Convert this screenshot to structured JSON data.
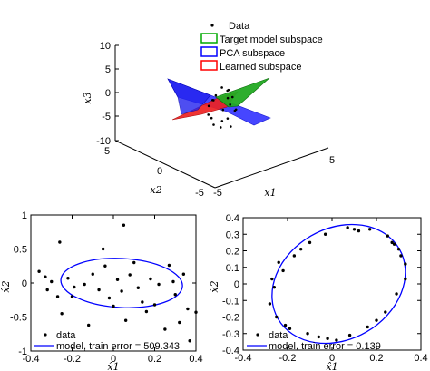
{
  "chart_data": [
    {
      "type": "scatter",
      "subtype": "3d-scatter-with-planes",
      "xlabel": "x1",
      "ylabel": "x2",
      "zlabel": "x3",
      "xlim": [
        -5,
        5
      ],
      "ylim": [
        -5,
        5
      ],
      "zlim": [
        -10,
        10
      ],
      "x_ticks": [
        "-5",
        "5"
      ],
      "y_ticks": [
        "5",
        "0",
        "-5"
      ],
      "z_ticks": [
        "10",
        "5",
        "0",
        "-5",
        "-10"
      ],
      "legend_position": "top-right",
      "legend": [
        {
          "label": "Data",
          "color": "#000000",
          "marker": "dot"
        },
        {
          "label": "Target model subspace",
          "color": "#00aa00",
          "marker": "patch"
        },
        {
          "label": "PCA subspace",
          "color": "#0000ff",
          "marker": "patch"
        },
        {
          "label": "Learned subspace",
          "color": "#ff0000",
          "marker": "patch"
        }
      ],
      "points": [
        [
          0.5,
          0.3,
          3.5
        ],
        [
          -0.4,
          -0.2,
          2.6
        ],
        [
          0.2,
          0.8,
          -1.8
        ],
        [
          -0.9,
          0.5,
          -2.5
        ],
        [
          0.8,
          -0.6,
          2.2
        ],
        [
          -0.3,
          -0.9,
          0.8
        ],
        [
          1.1,
          0.2,
          -1.5
        ],
        [
          0.3,
          1.2,
          -3.2
        ],
        [
          -0.6,
          -0.4,
          1.6
        ],
        [
          0.9,
          0.9,
          -0.4
        ],
        [
          -1.0,
          0.3,
          -1.2
        ],
        [
          0.4,
          -0.8,
          3.0
        ],
        [
          -0.2,
          0.6,
          -2.2
        ],
        [
          0.7,
          -0.3,
          1.0
        ],
        [
          -0.8,
          -0.7,
          0.2
        ],
        [
          0.1,
          0.1,
          -0.6
        ],
        [
          1.2,
          -0.5,
          0.6
        ],
        [
          -0.5,
          1.0,
          -2.9
        ],
        [
          0.6,
          0.4,
          0.4
        ],
        [
          -1.1,
          -0.1,
          -0.8
        ]
      ]
    },
    {
      "type": "scatter",
      "xlabel": "x̂1",
      "ylabel": "x̂2",
      "xlim": [
        -0.4,
        0.4
      ],
      "ylim": [
        -1,
        1
      ],
      "x_ticks": [
        "-0.4",
        "-0.2",
        "0",
        "0.2",
        "0.4"
      ],
      "y_ticks": [
        "1",
        "0.5",
        "0",
        "-0.5",
        "-1"
      ],
      "legend_position": "bottom-left",
      "series": [
        {
          "name": "data",
          "color": "#000000",
          "marker": "dot",
          "points": [
            [
              -0.36,
              0.17
            ],
            [
              -0.33,
              0.09
            ],
            [
              -0.3,
              0.02
            ],
            [
              -0.32,
              -0.1
            ],
            [
              -0.27,
              -0.2
            ],
            [
              -0.25,
              -0.45
            ],
            [
              -0.22,
              0.07
            ],
            [
              -0.19,
              -0.06
            ],
            [
              -0.2,
              -0.2
            ],
            [
              -0.14,
              -0.02
            ],
            [
              -0.12,
              -0.62
            ],
            [
              -0.1,
              0.13
            ],
            [
              -0.07,
              -0.1
            ],
            [
              -0.05,
              0.5
            ],
            [
              -0.04,
              0.25
            ],
            [
              -0.02,
              -0.22
            ],
            [
              0.0,
              -0.34
            ],
            [
              0.02,
              0.05
            ],
            [
              0.04,
              -0.12
            ],
            [
              0.06,
              -0.55
            ],
            [
              0.08,
              0.12
            ],
            [
              0.1,
              0.3
            ],
            [
              0.12,
              -0.07
            ],
            [
              0.14,
              -0.28
            ],
            [
              0.16,
              -0.42
            ],
            [
              0.18,
              0.06
            ],
            [
              0.2,
              -0.32
            ],
            [
              0.22,
              -0.02
            ],
            [
              0.25,
              -0.68
            ],
            [
              0.27,
              0.26
            ],
            [
              0.29,
              0.02
            ],
            [
              0.3,
              -0.17
            ],
            [
              0.32,
              -0.58
            ],
            [
              0.34,
              0.13
            ],
            [
              0.36,
              -0.38
            ],
            [
              0.37,
              -0.85
            ],
            [
              0.05,
              0.85
            ],
            [
              -0.26,
              0.6
            ],
            [
              0.4,
              -0.43
            ]
          ]
        },
        {
          "name": "model, train error = 509.343",
          "color": "#0000ff",
          "marker": "line",
          "ellipse": {
            "cx": 0.04,
            "cy": 0.0,
            "rx": 0.295,
            "ry": 0.36,
            "rotation_deg": -3
          }
        }
      ]
    },
    {
      "type": "scatter",
      "xlabel": "x̂1",
      "ylabel": "x̂2",
      "xlim": [
        -0.4,
        0.4
      ],
      "ylim": [
        -0.4,
        0.4
      ],
      "x_ticks": [
        "-0.4",
        "-0.2",
        "0",
        "0.2",
        "0.4"
      ],
      "y_ticks": [
        "0.4",
        "0.3",
        "0.2",
        "0.1",
        "0",
        "-0.1",
        "-0.2",
        "-0.3",
        "-0.4"
      ],
      "legend_position": "bottom-left",
      "series": [
        {
          "name": "data",
          "color": "#000000",
          "marker": "dot",
          "points": [
            [
              0.33,
              0.12
            ],
            [
              0.3,
              0.21
            ],
            [
              0.25,
              0.29
            ],
            [
              0.17,
              0.33
            ],
            [
              0.07,
              0.34
            ],
            [
              -0.03,
              0.3
            ],
            [
              -0.1,
              0.25
            ],
            [
              -0.17,
              0.17
            ],
            [
              -0.22,
              0.08
            ],
            [
              -0.26,
              -0.02
            ],
            [
              -0.28,
              -0.12
            ],
            [
              -0.25,
              -0.2
            ],
            [
              -0.19,
              -0.27
            ],
            [
              -0.11,
              -0.3
            ],
            [
              -0.02,
              -0.33
            ],
            [
              0.08,
              -0.31
            ],
            [
              0.16,
              -0.26
            ],
            [
              0.24,
              -0.17
            ],
            [
              0.29,
              -0.06
            ],
            [
              0.33,
              0.03
            ],
            [
              -0.21,
              -0.25
            ],
            [
              0.12,
              0.32
            ],
            [
              0.31,
              0.17
            ],
            [
              -0.27,
              0.03
            ],
            [
              0.2,
              -0.22
            ],
            [
              -0.06,
              -0.32
            ],
            [
              0.02,
              -0.34
            ],
            [
              0.28,
              0.24
            ],
            [
              -0.14,
              0.21
            ],
            [
              -0.24,
              0.13
            ],
            [
              0.27,
              0.25
            ],
            [
              0.1,
              0.33
            ]
          ]
        },
        {
          "name": "model, train error = 0.139",
          "color": "#0000ff",
          "marker": "line",
          "ellipse": {
            "cx": 0.03,
            "cy": 0.0,
            "rx": 0.315,
            "ry": 0.335,
            "rotation_deg": 30
          }
        }
      ]
    }
  ]
}
